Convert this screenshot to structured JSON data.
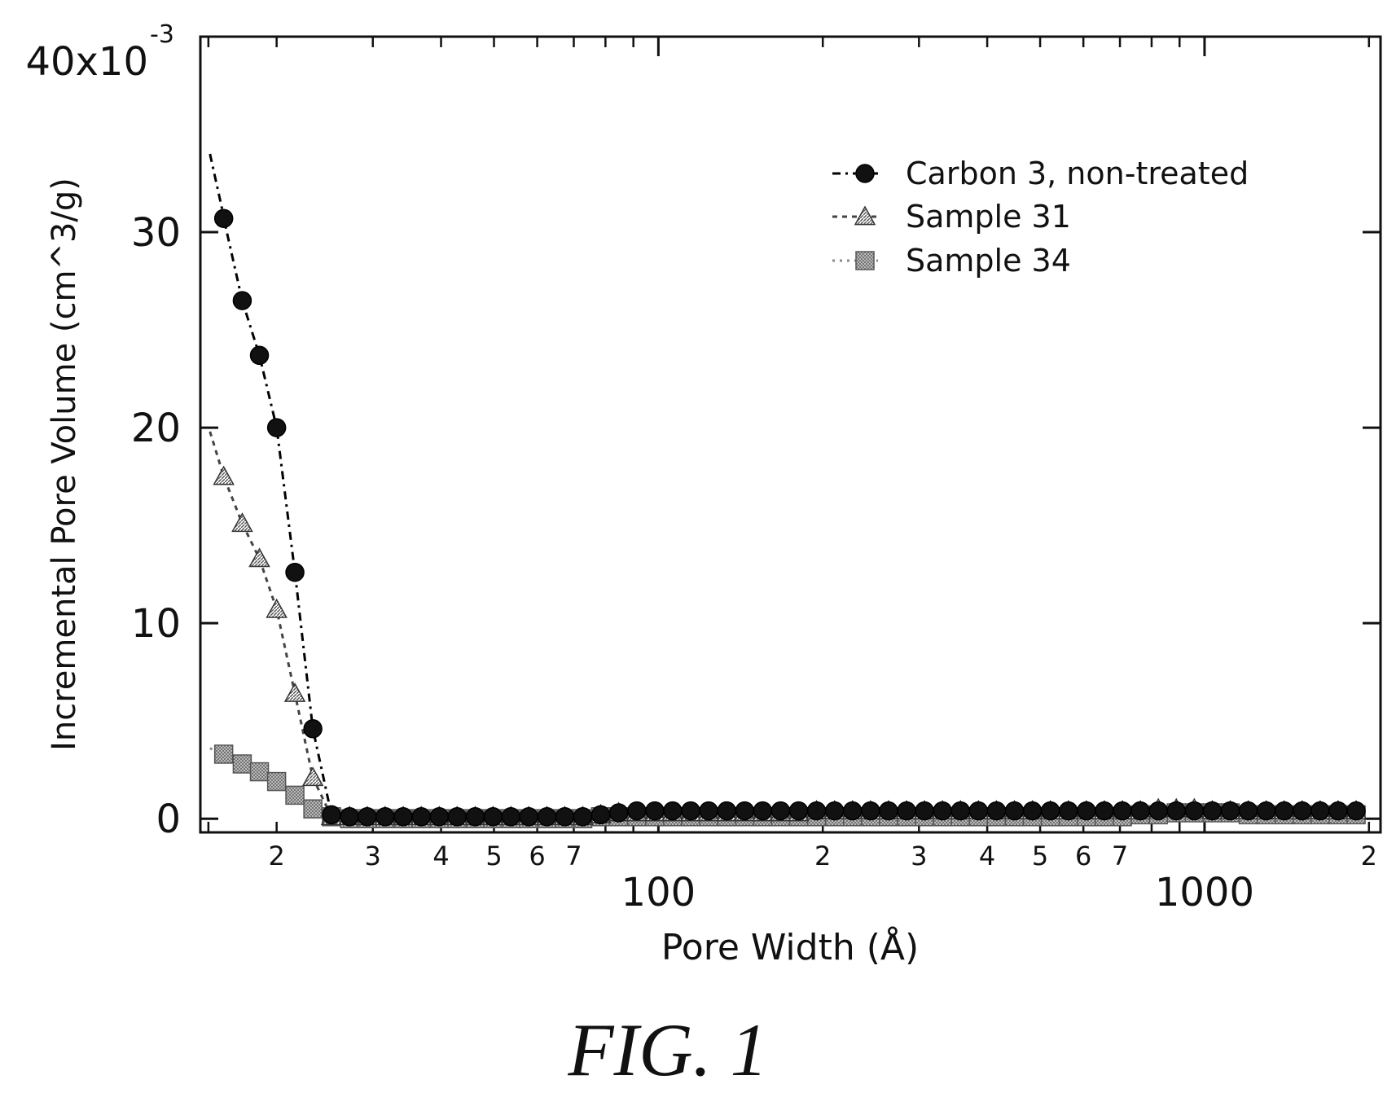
{
  "figure": {
    "caption": "FIG. 1"
  },
  "chart_data": {
    "type": "scatter",
    "xlabel": "Pore Width (Å)",
    "ylabel": "Incremental Pore Volume (cm^3/g)",
    "x_scale": "log",
    "xlim": [
      14.5,
      2100
    ],
    "ylim": [
      -0.0007,
      0.04
    ],
    "y_ticks": [
      {
        "value": 0,
        "label": "0"
      },
      {
        "value": 0.01,
        "label": "10"
      },
      {
        "value": 0.02,
        "label": "20"
      },
      {
        "value": 0.03,
        "label": "30"
      },
      {
        "value": 0.04,
        "label": "40x10"
      }
    ],
    "y_exponent_label": "-3",
    "x_major_ticks": [
      {
        "value": 100,
        "label": "100"
      },
      {
        "value": 1000,
        "label": "1000"
      }
    ],
    "x_minor_ticks": [
      {
        "value": 20,
        "label": "2"
      },
      {
        "value": 30,
        "label": "3"
      },
      {
        "value": 40,
        "label": "4"
      },
      {
        "value": 50,
        "label": "5"
      },
      {
        "value": 60,
        "label": "6"
      },
      {
        "value": 70,
        "label": "7"
      },
      {
        "value": 200,
        "label": "2"
      },
      {
        "value": 300,
        "label": "3"
      },
      {
        "value": 400,
        "label": "4"
      },
      {
        "value": 500,
        "label": "5"
      },
      {
        "value": 600,
        "label": "6"
      },
      {
        "value": 700,
        "label": "7"
      },
      {
        "value": 2000,
        "label": "2"
      }
    ],
    "legend_position": "top-right",
    "grid": false,
    "series": [
      {
        "name": "Carbon 3, non-treated",
        "marker": "circle",
        "color": "#000000",
        "line_x": [
          15.1,
          16.0
        ],
        "line_y": [
          0.034,
          0.0308
        ],
        "x": [
          16.0,
          17.3,
          18.6,
          20.0,
          21.6,
          23.3,
          25.2,
          27.2,
          29.3,
          31.6,
          34.1,
          36.8,
          39.7,
          42.8,
          46.2,
          49.8,
          53.7,
          57.9,
          62.5,
          67.4,
          72.7,
          78.4,
          84.6,
          91.3,
          98.5,
          106.2,
          114.6,
          123.6,
          133.4,
          143.9,
          155.2,
          167.4,
          180.6,
          194.8,
          210.2,
          226.7,
          244.6,
          263.9,
          284.7,
          307.1,
          331.3,
          357.4,
          385.5,
          415.9,
          448.7,
          484.0,
          522.1,
          563.3,
          607.6,
          655.5,
          707.1,
          762.8,
          822.9,
          887.7,
          957.6,
          1033.1,
          1114.4,
          1202.2,
          1296.9,
          1399.1,
          1509.3,
          1628.2,
          1756.4,
          1894.8
        ],
        "y": [
          0.0307,
          0.0265,
          0.0237,
          0.02,
          0.0126,
          0.0046,
          0.0002,
          0.0001,
          0.0001,
          0.0001,
          0.0001,
          0.0001,
          0.0001,
          0.0001,
          0.0001,
          0.0001,
          0.0001,
          0.0001,
          0.0001,
          0.0001,
          0.0001,
          0.0002,
          0.0003,
          0.0004,
          0.0004,
          0.0004,
          0.0004,
          0.0004,
          0.0004,
          0.0004,
          0.0004,
          0.0004,
          0.0004,
          0.0004,
          0.0004,
          0.0004,
          0.0004,
          0.0004,
          0.0004,
          0.0004,
          0.0004,
          0.0004,
          0.0004,
          0.0004,
          0.0004,
          0.0004,
          0.0004,
          0.0004,
          0.0004,
          0.0004,
          0.0004,
          0.0004,
          0.0004,
          0.0004,
          0.0004,
          0.0004,
          0.0004,
          0.0004,
          0.0004,
          0.0004,
          0.0004,
          0.0004,
          0.0004,
          0.0004
        ]
      },
      {
        "name": "Sample 31",
        "marker": "triangle",
        "color": "#444444",
        "line_x": [
          15.1,
          16.0
        ],
        "line_y": [
          0.0198,
          0.0175
        ],
        "x": [
          16.0,
          17.3,
          18.6,
          20.0,
          21.6,
          23.3,
          25.2,
          27.2,
          29.3,
          31.6,
          34.1,
          36.8,
          39.7,
          42.8,
          46.2,
          49.8,
          53.7,
          57.9,
          62.5,
          67.4,
          72.7,
          78.4,
          84.6,
          91.3,
          98.5,
          106.2,
          114.6,
          123.6,
          133.4,
          143.9,
          155.2,
          167.4,
          180.6,
          194.8,
          210.2,
          226.7,
          244.6,
          263.9,
          284.7,
          307.1,
          331.3,
          357.4,
          385.5,
          415.9,
          448.7,
          484.0,
          522.1,
          563.3,
          607.6,
          655.5,
          707.1,
          762.8,
          822.9,
          887.7,
          957.6,
          1033.1,
          1114.4,
          1202.2,
          1296.9,
          1399.1,
          1509.3,
          1628.2,
          1756.4,
          1894.8
        ],
        "y": [
          0.0175,
          0.0151,
          0.0133,
          0.0107,
          0.0064,
          0.0021,
          0.0001,
          0.0001,
          0.0001,
          0.0001,
          0.0001,
          0.0001,
          0.0001,
          0.0001,
          0.0001,
          0.0001,
          0.0001,
          0.0001,
          0.0001,
          0.0001,
          0.0001,
          0.0002,
          0.0003,
          0.0003,
          0.0003,
          0.0003,
          0.0003,
          0.0003,
          0.0003,
          0.0003,
          0.0003,
          0.0003,
          0.0003,
          0.0004,
          0.0004,
          0.0004,
          0.0004,
          0.0004,
          0.0004,
          0.0004,
          0.0004,
          0.0004,
          0.0004,
          0.0004,
          0.0004,
          0.0004,
          0.0004,
          0.0004,
          0.0004,
          0.0004,
          0.0004,
          0.0004,
          0.0005,
          0.0005,
          0.0005,
          0.0004,
          0.0004,
          0.0004,
          0.0004,
          0.0004,
          0.0004,
          0.0004,
          0.0004,
          0.0004
        ]
      },
      {
        "name": "Sample 34",
        "marker": "square",
        "color": "#888888",
        "line_x": [
          15.1,
          16.0
        ],
        "line_y": [
          0.0036,
          0.0033
        ],
        "x": [
          16.0,
          17.3,
          18.6,
          20.0,
          21.6,
          23.3,
          25.2,
          27.2,
          29.3,
          31.6,
          34.1,
          36.8,
          39.7,
          42.8,
          46.2,
          49.8,
          53.7,
          57.9,
          62.5,
          67.4,
          72.7,
          78.4,
          84.6,
          91.3,
          98.5,
          106.2,
          114.6,
          123.6,
          133.4,
          143.9,
          155.2,
          167.4,
          180.6,
          194.8,
          210.2,
          226.7,
          244.6,
          263.9,
          284.7,
          307.1,
          331.3,
          357.4,
          385.5,
          415.9,
          448.7,
          484.0,
          522.1,
          563.3,
          607.6,
          655.5,
          707.1,
          762.8,
          822.9,
          887.7,
          957.6,
          1033.1,
          1114.4,
          1202.2,
          1296.9,
          1399.1,
          1509.3,
          1628.2,
          1756.4,
          1894.8
        ],
        "y": [
          0.0033,
          0.0028,
          0.0024,
          0.0019,
          0.0012,
          0.0005,
          0.0001,
          0.0,
          0.0,
          0.0,
          0.0,
          0.0,
          0.0,
          0.0,
          0.0,
          0.0,
          0.0,
          0.0,
          0.0,
          0.0,
          0.0,
          0.0001,
          0.0001,
          0.0001,
          0.0001,
          0.0001,
          0.0001,
          0.0001,
          0.0001,
          0.0001,
          0.0001,
          0.0001,
          0.0001,
          0.0001,
          0.0001,
          0.0001,
          0.0001,
          0.0001,
          0.0001,
          0.0001,
          0.0001,
          0.0001,
          0.0001,
          0.0001,
          0.0001,
          0.0001,
          0.0001,
          0.0001,
          0.0001,
          0.0001,
          0.0001,
          0.0002,
          0.0002,
          0.0003,
          0.0003,
          0.0003,
          0.0003,
          0.0002,
          0.0002,
          0.0002,
          0.0002,
          0.0002,
          0.0002,
          0.0002
        ]
      }
    ]
  }
}
